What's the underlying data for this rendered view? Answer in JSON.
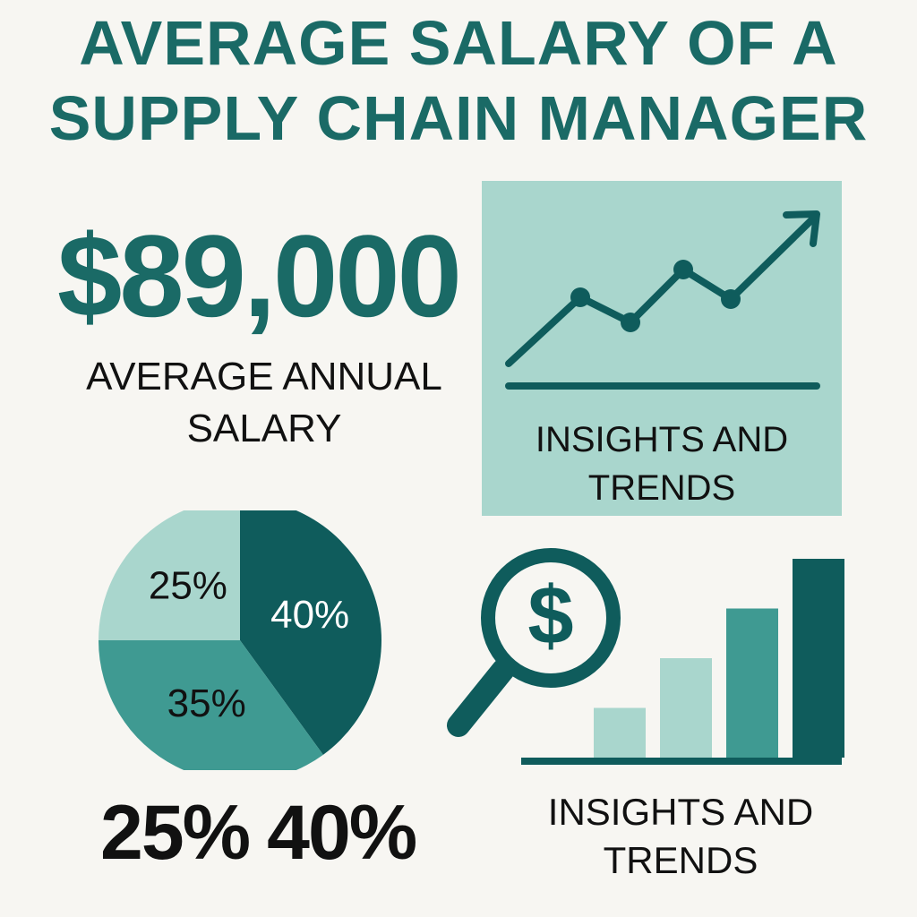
{
  "title": {
    "line1": "AVERAGE SALARY OF A",
    "line2": "SUPPLY CHAIN MANAGER"
  },
  "salary": {
    "amount": "$89,000",
    "label_line1": "AVERAGE ANNUAL",
    "label_line2": "SALARY"
  },
  "trend_panel": {
    "label_line1": "INSIGHTS AND",
    "label_line2": "TRENDS",
    "icon": "trend-arrow-line-icon"
  },
  "pie": {
    "slices": [
      {
        "label": "40%",
        "value": 40,
        "color": "#0f5c5c"
      },
      {
        "label": "35%",
        "value": 35,
        "color": "#3f9a92"
      },
      {
        "label": "25%",
        "value": 25,
        "color": "#a9d6cd"
      }
    ]
  },
  "bottom_percents": {
    "first": "25%",
    "second": "40%"
  },
  "bar_panel": {
    "icon": "magnifier-dollar-icon",
    "bars": [
      {
        "value": 1,
        "color": "#a9d6cd"
      },
      {
        "value": 2,
        "color": "#a9d6cd"
      },
      {
        "value": 3,
        "color": "#3f9a92"
      },
      {
        "value": 4,
        "color": "#0f5c5c"
      }
    ],
    "label_line1": "INSIGHTS AND",
    "label_line2": "TRENDS"
  },
  "colors": {
    "background": "#f7f6f2",
    "teal_dark": "#0f5c5c",
    "teal_mid": "#3f9a92",
    "teal_light": "#a9d6cd",
    "title": "#1a6a66"
  }
}
